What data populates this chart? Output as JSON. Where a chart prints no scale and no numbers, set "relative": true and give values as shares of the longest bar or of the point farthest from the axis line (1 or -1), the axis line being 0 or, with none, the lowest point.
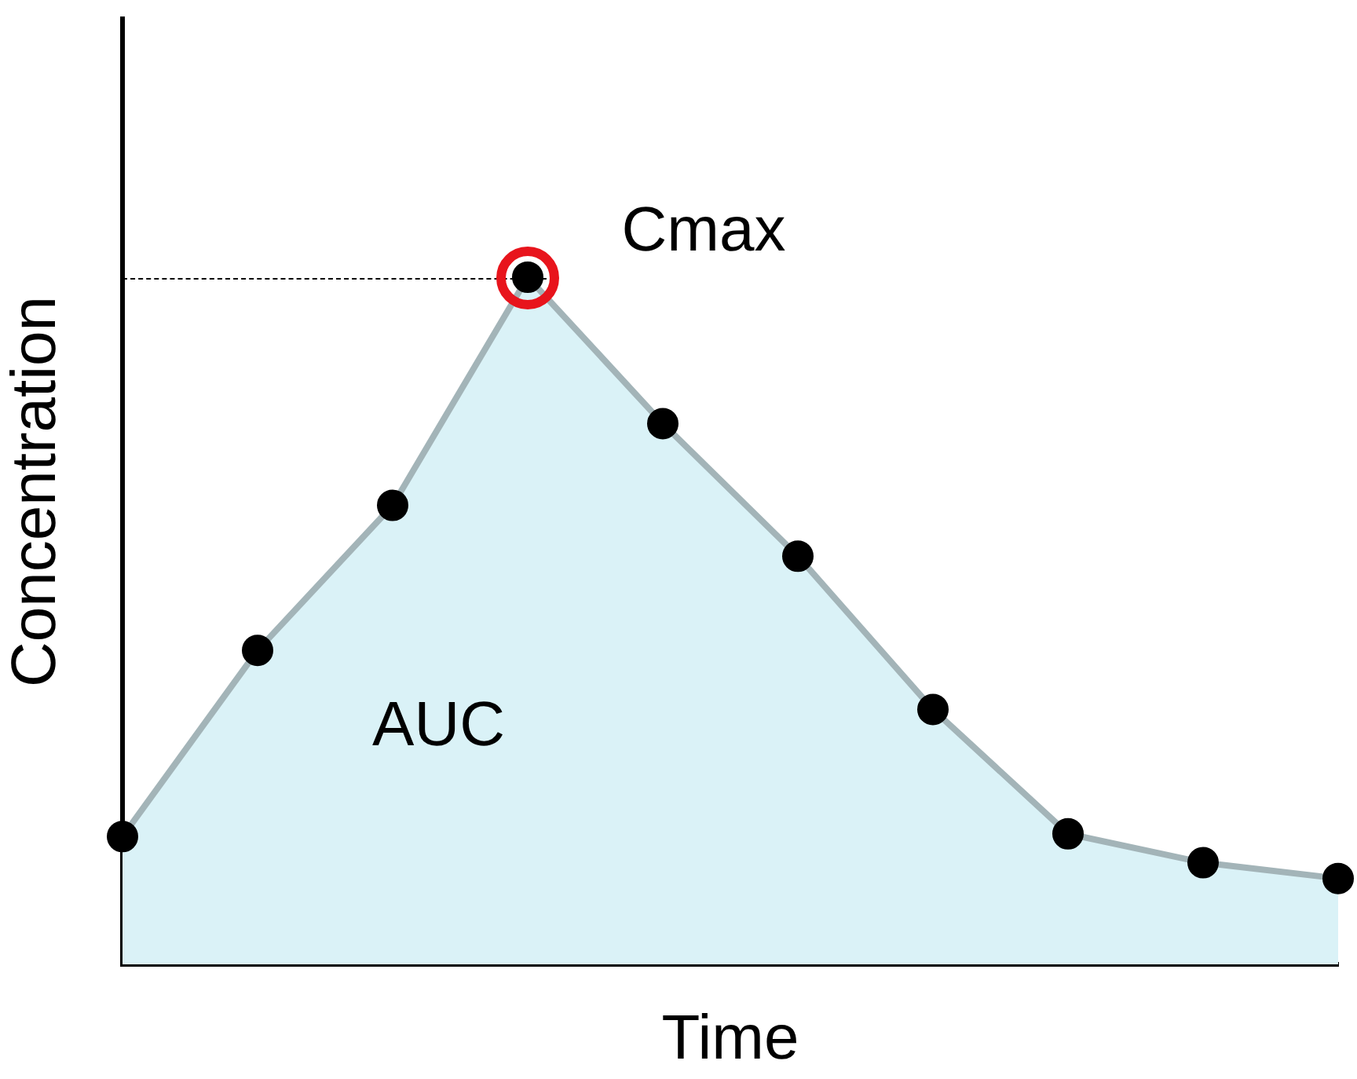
{
  "chart_data": {
    "type": "area",
    "relative": true,
    "xlabel": "Time",
    "ylabel": "Concentration",
    "categories": [
      null,
      null,
      null,
      null,
      null,
      null,
      null,
      null,
      null,
      null
    ],
    "series": [
      {
        "color": "#daf2f7",
        "values": [
          0.186,
          0.457,
          0.668,
          1,
          0.787,
          0.594,
          0.371,
          0.19,
          0.148,
          0.125
        ]
      }
    ],
    "marker": "circle",
    "grid": false,
    "legend": false,
    "annotations": [
      "Cmax",
      "AUC"
    ]
  }
}
